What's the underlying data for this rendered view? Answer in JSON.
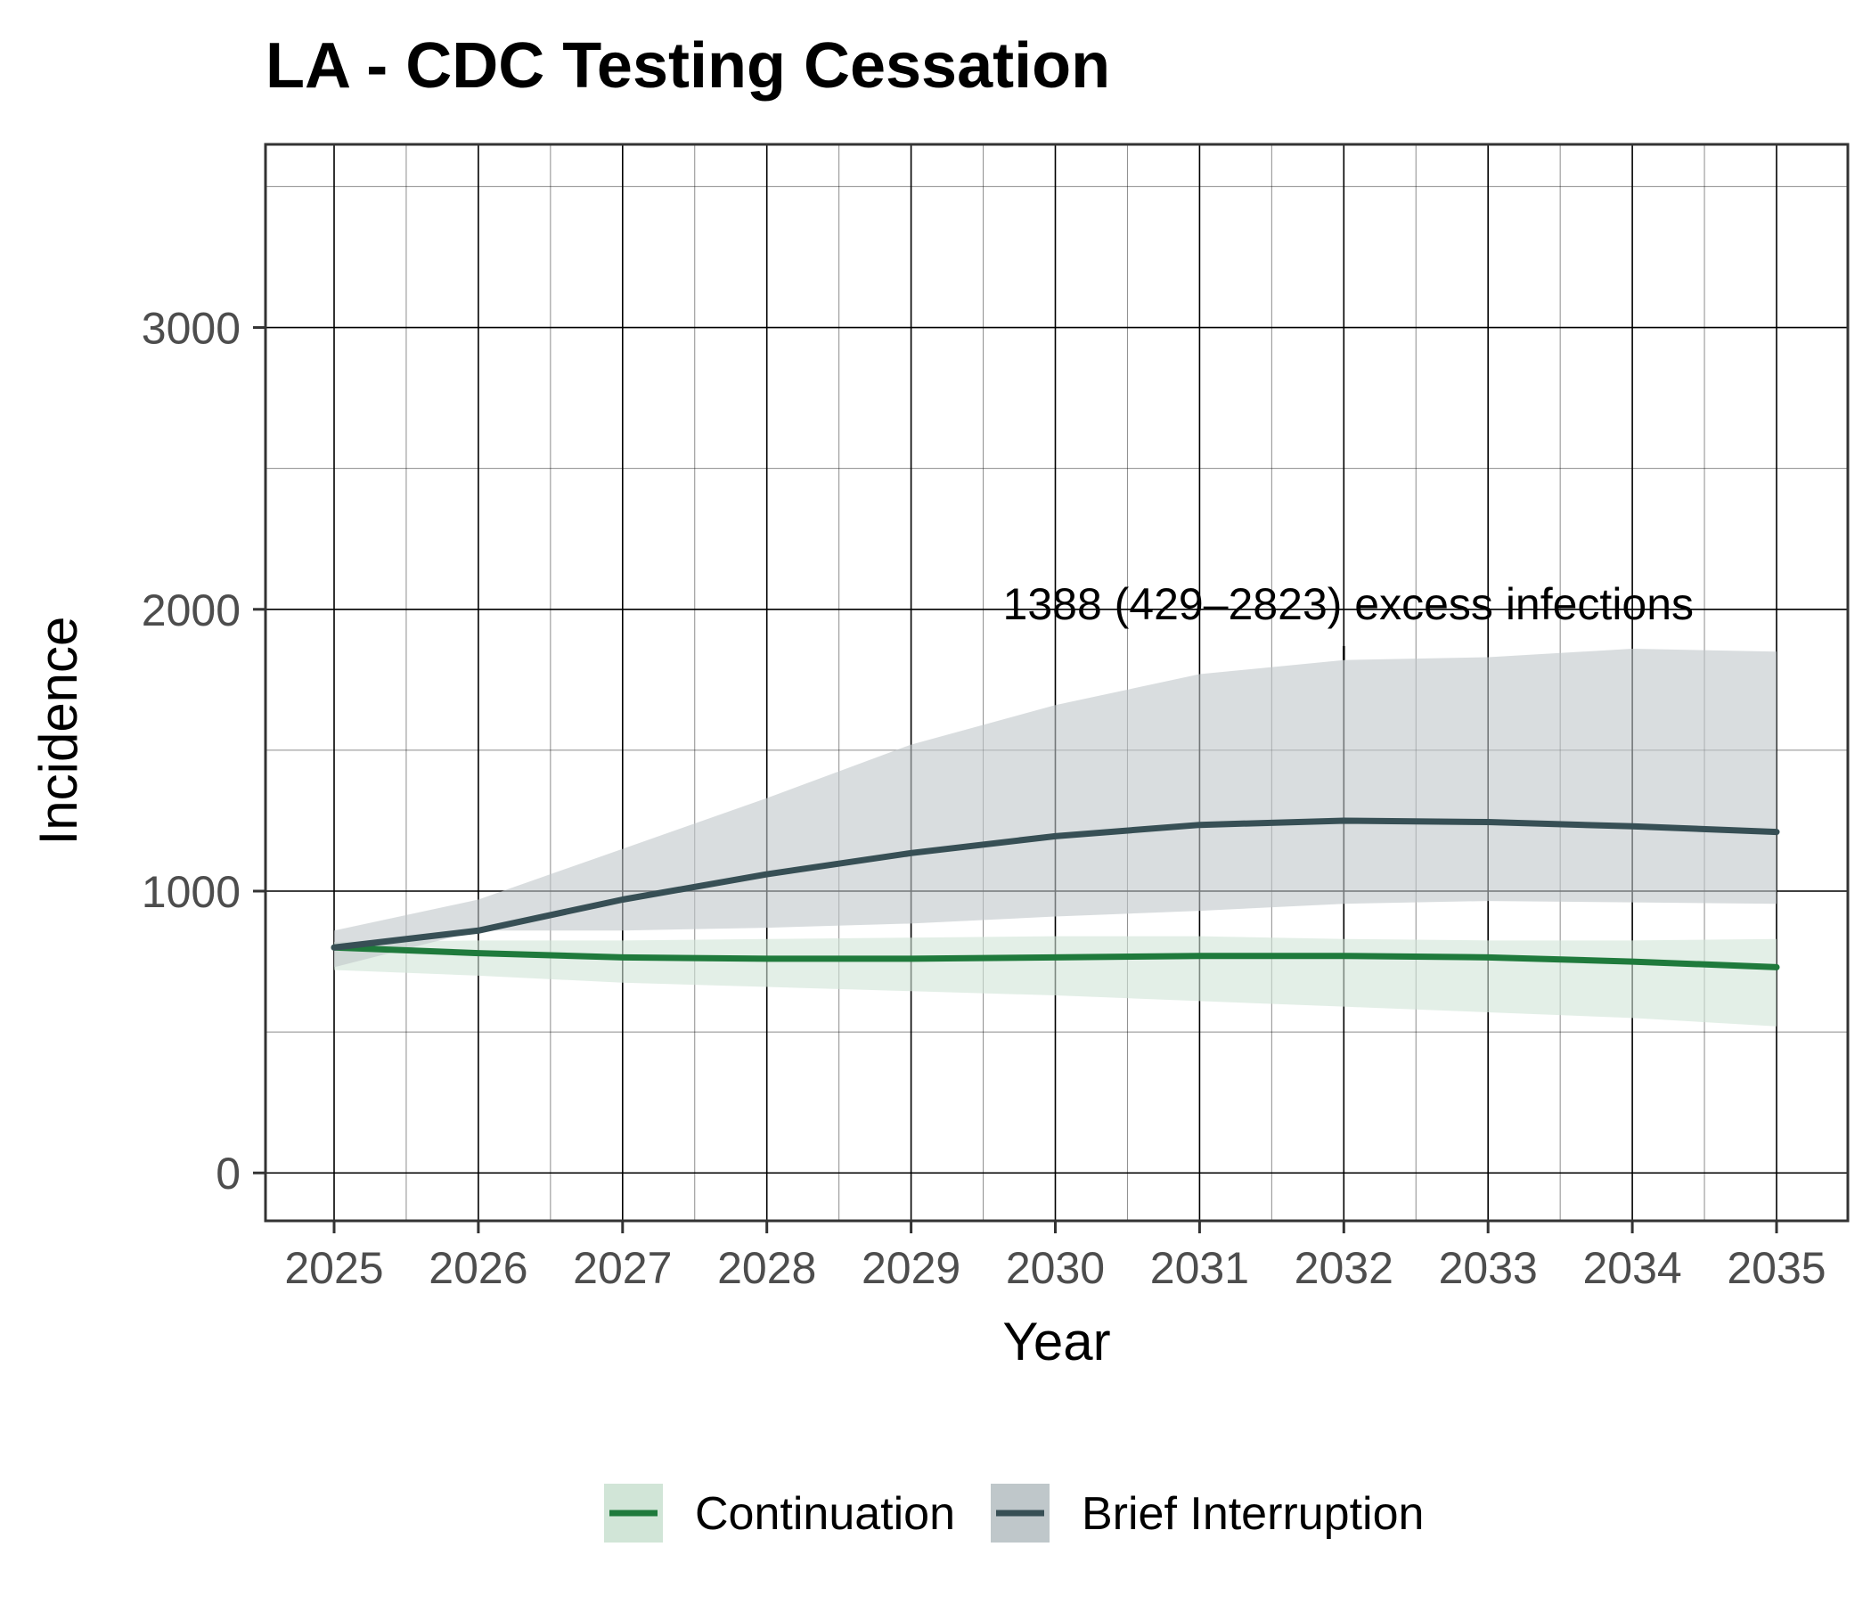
{
  "chart_data": {
    "type": "line",
    "title": "LA - CDC Testing Cessation",
    "xlabel": "Year",
    "ylabel": "Incidence",
    "xlim": [
      2025,
      2035
    ],
    "ylim": [
      -170,
      3650
    ],
    "x_ticks": [
      "2025",
      "2026",
      "2027",
      "2028",
      "2029",
      "2030",
      "2031",
      "2032",
      "2033",
      "2034",
      "2035"
    ],
    "y_ticks": [
      "0",
      "1000",
      "2000",
      "3000"
    ],
    "grid": true,
    "legend_position": "bottom",
    "x": [
      2025,
      2026,
      2027,
      2028,
      2029,
      2030,
      2031,
      2032,
      2033,
      2034,
      2035
    ],
    "series": [
      {
        "name": "Continuation",
        "color": "#1f7a3c",
        "band_color": "#d1e5d7",
        "values": [
          800,
          780,
          765,
          760,
          760,
          765,
          770,
          770,
          765,
          750,
          730
        ],
        "lower": [
          720,
          700,
          675,
          660,
          645,
          630,
          610,
          590,
          570,
          550,
          520
        ],
        "upper": [
          820,
          825,
          825,
          830,
          835,
          840,
          840,
          830,
          825,
          825,
          830
        ]
      },
      {
        "name": "Brief Interruption",
        "color": "#374f55",
        "band_color": "#bfc7ca",
        "values": [
          800,
          860,
          970,
          1060,
          1135,
          1195,
          1235,
          1250,
          1245,
          1230,
          1210
        ],
        "lower": [
          730,
          860,
          860,
          870,
          885,
          910,
          930,
          955,
          965,
          960,
          955
        ],
        "upper": [
          860,
          970,
          1150,
          1330,
          1520,
          1660,
          1770,
          1820,
          1830,
          1860,
          1850
        ]
      }
    ],
    "annotations": [
      {
        "text": "1388 (429–2823) excess infections",
        "x": 2032,
        "y_from": 1820,
        "y_to": 1990
      }
    ]
  }
}
